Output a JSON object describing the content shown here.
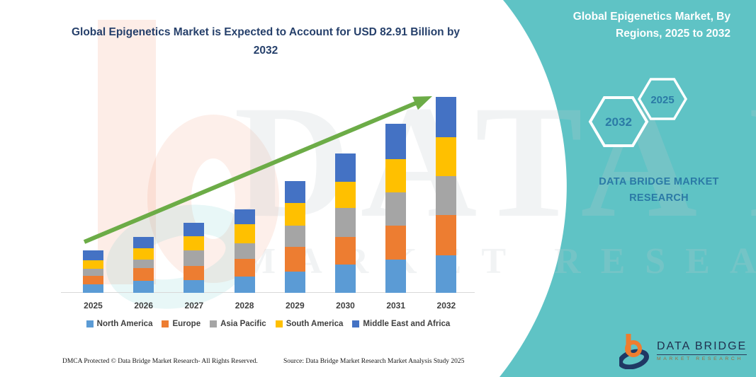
{
  "header": {
    "chart_title": "Global Epigenetics Market is Expected to Account for USD 82.91 Billion by 2032"
  },
  "right_panel": {
    "title": "Global Epigenetics Market, By Regions, 2025 to 2032",
    "hexagon_back_label": "2032",
    "hexagon_front_label": "2025",
    "brand": "DATA BRIDGE MARKET RESEARCH",
    "background_color": "#5FC3C5",
    "text_color": "#2B7AA6"
  },
  "logo": {
    "name": "DATA BRIDGE",
    "subtitle": "MARKET RESEARCH",
    "orange": "#EE7D2F",
    "navy": "#1F3864"
  },
  "watermark": {
    "line1": "DATA BRIDGE",
    "line2": "MARKET RESEARCH"
  },
  "footer": {
    "dmca": "DMCA Protected © Data Bridge Market Research-  All Rights Reserved.",
    "source": "Source: Data Bridge Market Research  Market Analysis Study 2025"
  },
  "chart_data": {
    "type": "bar",
    "stacked": true,
    "title": "Global Epigenetics Market is Expected to Account for USD 82.91 Billion by 2032",
    "unit": "USD Billion",
    "categories": [
      "2025",
      "2026",
      "2027",
      "2028",
      "2029",
      "2030",
      "2031",
      "2032"
    ],
    "series": [
      {
        "name": "North America",
        "color": "#5B9BD5",
        "values": [
          3.7,
          5.0,
          5.5,
          7.0,
          9.0,
          12.0,
          14.0,
          15.8
        ]
      },
      {
        "name": "Europe",
        "color": "#ED7D31",
        "values": [
          3.5,
          5.3,
          6.0,
          7.5,
          10.5,
          11.8,
          14.4,
          17.0
        ]
      },
      {
        "name": "Asia Pacific",
        "color": "#A5A5A5",
        "values": [
          3.0,
          3.7,
          6.7,
          6.5,
          9.0,
          12.2,
          14.0,
          16.5
        ]
      },
      {
        "name": "South America",
        "color": "#FFC000",
        "values": [
          3.6,
          4.8,
          6.0,
          8.0,
          9.6,
          11.2,
          14.0,
          16.5
        ]
      },
      {
        "name": "Middle East and Africa",
        "color": "#4472C4",
        "values": [
          4.2,
          4.7,
          5.6,
          6.4,
          9.3,
          12.0,
          15.0,
          17.11
        ]
      }
    ],
    "totals_estimated_usd_billion": [
      18.0,
      23.5,
      29.8,
      35.4,
      47.4,
      59.2,
      71.4,
      82.91
    ],
    "final_value_label": "USD 82.91 Billion by 2032",
    "legend_position": "bottom",
    "y_axis_visible": false,
    "gridlines": false,
    "annotations": [
      {
        "type": "trend-arrow",
        "color": "#6CAC47",
        "from_category": "2025",
        "to_category": "2032",
        "direction": "up-right"
      }
    ]
  }
}
